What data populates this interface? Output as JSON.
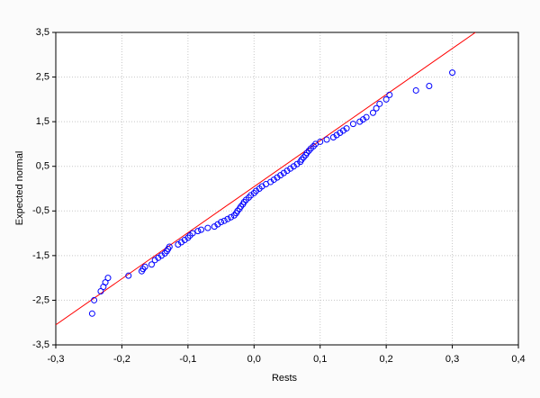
{
  "chart_data": {
    "type": "scatter",
    "x_label": "Rests",
    "y_label": "Expected normal",
    "xlim": [
      -0.3,
      0.4
    ],
    "ylim": [
      -3.5,
      3.5
    ],
    "grid": true,
    "xticks": [
      {
        "value": -0.3,
        "label": "-0,3"
      },
      {
        "value": -0.2,
        "label": "-0,2"
      },
      {
        "value": -0.1,
        "label": "-0,1"
      },
      {
        "value": 0,
        "label": "0,0"
      },
      {
        "value": 0.1,
        "label": "0,1"
      },
      {
        "value": 0.2,
        "label": "0,2"
      },
      {
        "value": 0.3,
        "label": "0,3"
      },
      {
        "value": 0.4,
        "label": "0,4"
      }
    ],
    "yticks": [
      {
        "value": -3.5,
        "label": "-3,5"
      },
      {
        "value": -2.5,
        "label": "-2,5"
      },
      {
        "value": -1.5,
        "label": "-1,5"
      },
      {
        "value": -0.5,
        "label": "-0,5"
      },
      {
        "value": 0.5,
        "label": "0,5"
      },
      {
        "value": 1.5,
        "label": "1,5"
      },
      {
        "value": 2.5,
        "label": "2,5"
      },
      {
        "value": 3.5,
        "label": "3,5"
      }
    ],
    "series": [
      {
        "color": "#0000ff",
        "x": [
          -0.245,
          -0.242,
          -0.232,
          -0.228,
          -0.225,
          -0.221,
          -0.19,
          -0.17,
          -0.168,
          -0.165,
          -0.155,
          -0.15,
          -0.145,
          -0.14,
          -0.135,
          -0.132,
          -0.13,
          -0.128,
          -0.115,
          -0.11,
          -0.105,
          -0.1,
          -0.097,
          -0.093,
          -0.085,
          -0.08,
          -0.07,
          -0.06,
          -0.055,
          -0.05,
          -0.045,
          -0.04,
          -0.035,
          -0.03,
          -0.027,
          -0.025,
          -0.022,
          -0.02,
          -0.017,
          -0.015,
          -0.012,
          -0.008,
          -0.005,
          0.0,
          0.003,
          0.008,
          0.012,
          0.018,
          0.025,
          0.03,
          0.035,
          0.04,
          0.045,
          0.05,
          0.055,
          0.06,
          0.065,
          0.07,
          0.072,
          0.075,
          0.078,
          0.08,
          0.083,
          0.086,
          0.09,
          0.093,
          0.1,
          0.11,
          0.12,
          0.125,
          0.13,
          0.135,
          0.14,
          0.15,
          0.16,
          0.165,
          0.17,
          0.18,
          0.185,
          0.19,
          0.2,
          0.205,
          0.245,
          0.265,
          0.3
        ],
        "values": [
          -2.8,
          -2.5,
          -2.3,
          -2.2,
          -2.1,
          -2.0,
          -1.95,
          -1.85,
          -1.8,
          -1.75,
          -1.7,
          -1.6,
          -1.55,
          -1.5,
          -1.45,
          -1.4,
          -1.35,
          -1.3,
          -1.25,
          -1.2,
          -1.15,
          -1.1,
          -1.05,
          -1.0,
          -0.95,
          -0.92,
          -0.88,
          -0.85,
          -0.8,
          -0.75,
          -0.72,
          -0.68,
          -0.64,
          -0.6,
          -0.55,
          -0.5,
          -0.45,
          -0.4,
          -0.35,
          -0.3,
          -0.25,
          -0.2,
          -0.15,
          -0.1,
          -0.05,
          0.0,
          0.05,
          0.1,
          0.15,
          0.2,
          0.25,
          0.3,
          0.35,
          0.4,
          0.45,
          0.5,
          0.55,
          0.6,
          0.65,
          0.7,
          0.75,
          0.8,
          0.85,
          0.9,
          0.95,
          1.0,
          1.05,
          1.1,
          1.15,
          1.2,
          1.25,
          1.3,
          1.35,
          1.45,
          1.5,
          1.55,
          1.6,
          1.7,
          1.8,
          1.9,
          2.0,
          2.1,
          2.2,
          2.3,
          2.6
        ]
      }
    ],
    "reference_line": {
      "color": "#ff0000",
      "x": [
        -0.3,
        0.335
      ],
      "values": [
        -3.05,
        3.5
      ]
    }
  }
}
